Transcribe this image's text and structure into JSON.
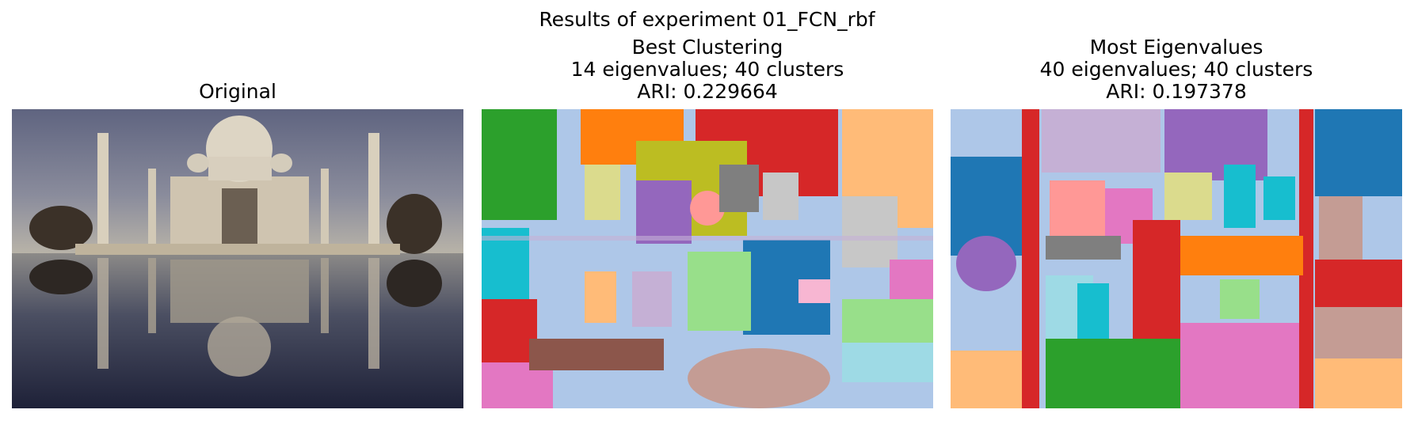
{
  "figure": {
    "suptitle": "Results of experiment 01_FCN_rbf"
  },
  "panels": [
    {
      "title_lines": [
        "Original"
      ],
      "image": "taj-mahal-photo"
    },
    {
      "title_lines": [
        "Best Clustering",
        "14 eigenvalues; 40 clusters",
        "ARI: 0.229664"
      ],
      "image": "segmentation-map"
    },
    {
      "title_lines": [
        "Most Eigenvalues",
        "40 eigenvalues; 40 clusters",
        "ARI: 0.197378"
      ],
      "image": "segmentation-map"
    }
  ],
  "palette": [
    "#1f77b4",
    "#aec7e8",
    "#ff7f0e",
    "#ffbb78",
    "#2ca02c",
    "#98df8a",
    "#d62728",
    "#ff9896",
    "#9467bd",
    "#c5b0d5",
    "#8c564b",
    "#c49c94",
    "#e377c2",
    "#f7b6d2",
    "#7f7f7f",
    "#c7c7c7",
    "#bcbd22",
    "#dbdb8d",
    "#17becf",
    "#9edae5"
  ]
}
